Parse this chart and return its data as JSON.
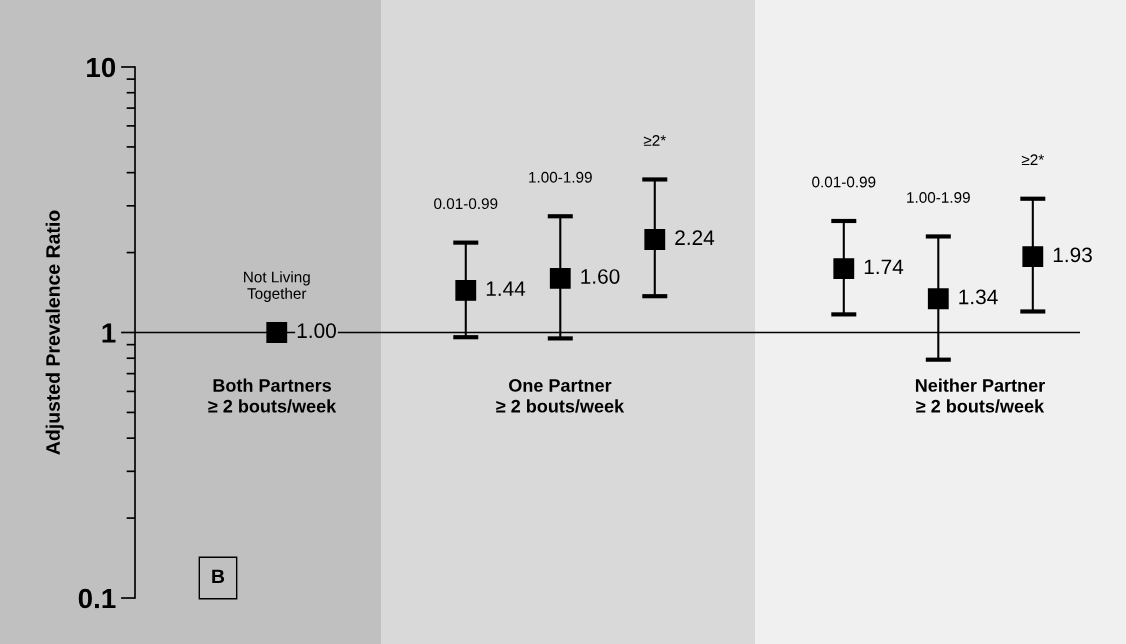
{
  "chart_data": {
    "type": "scatter",
    "ylabel": "Adjusted Prevalence Ratio",
    "categories": [
      null,
      "Not Living\nTogether",
      null,
      "0.01-0.99",
      "1.00-1.99",
      "≥2*",
      null,
      "0.01-0.99",
      "1.00-1.99",
      "≥2*"
    ],
    "series": [
      {
        "color": "#000000",
        "values": [
          null,
          1.0,
          null,
          1.44,
          1.6,
          2.24,
          null,
          1.74,
          1.34,
          1.93
        ],
        "errors": [
          null,
          null,
          null,
          [
            0.96,
            2.18
          ],
          [
            0.95,
            2.74
          ],
          [
            1.37,
            3.77
          ],
          null,
          [
            1.17,
            2.63
          ],
          [
            0.79,
            2.3
          ],
          [
            1.2,
            3.19
          ]
        ],
        "value_labels": [
          null,
          "1.00",
          null,
          "1.44",
          "1.60",
          "2.24",
          null,
          "1.74",
          "1.34",
          "1.93"
        ]
      }
    ],
    "log": "y",
    "ylim": [
      0.1,
      10
    ],
    "yticks": [
      0.1,
      1,
      10
    ],
    "grid": false,
    "legend": false,
    "marker": "square",
    "ref_lines": [
      {
        "axis": "y",
        "value": 1,
        "color": "#000000"
      }
    ],
    "annotations": [
      "Both Partners\n≥ 2 bouts/week",
      "One Partner\n≥ 2 bouts/week",
      "Neither Partner\n≥ 2 bouts/week",
      "B"
    ]
  }
}
